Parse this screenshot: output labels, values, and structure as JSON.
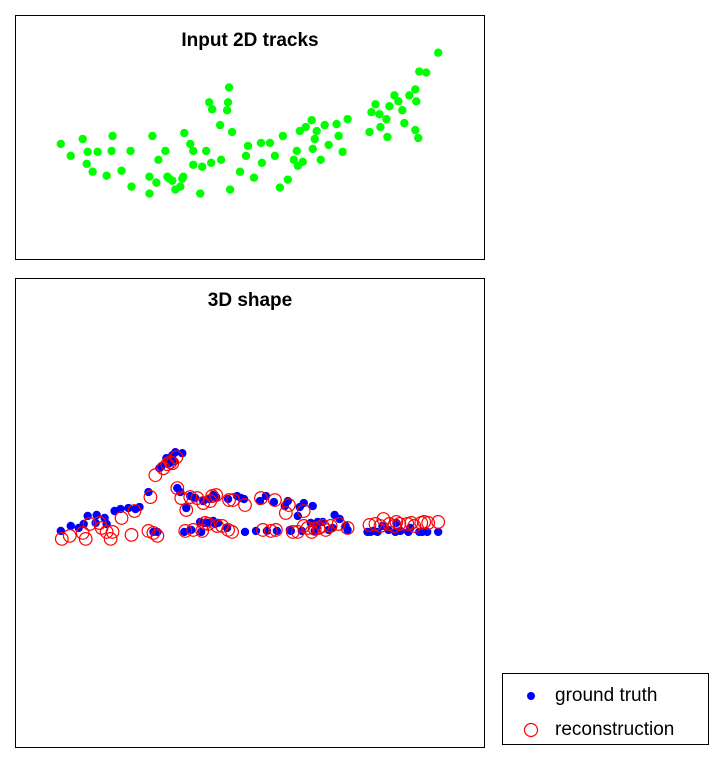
{
  "chart_data": [
    {
      "type": "scatter",
      "title": "Input 2D tracks",
      "xlabel": "",
      "ylabel": "",
      "xlim": [
        0,
        470
      ],
      "ylim": [
        0,
        245
      ],
      "grid": false,
      "series": [
        {
          "color": "#00ff00",
          "marker": "filled-circle",
          "points": [
            [
              45,
              129
            ],
            [
              55,
              141
            ],
            [
              67,
              124
            ],
            [
              72,
              137
            ],
            [
              82,
              137
            ],
            [
              71,
              149
            ],
            [
              77,
              157
            ],
            [
              91,
              161
            ],
            [
              97,
              121
            ],
            [
              96,
              136
            ],
            [
              106,
              156
            ],
            [
              115,
              136
            ],
            [
              116,
              172
            ],
            [
              134,
              162
            ],
            [
              137,
              121
            ],
            [
              134,
              179
            ],
            [
              141,
              168
            ],
            [
              143,
              145
            ],
            [
              150,
              136
            ],
            [
              152,
              162
            ],
            [
              154,
              164
            ],
            [
              157,
              166
            ],
            [
              160,
              175
            ],
            [
              165,
              172
            ],
            [
              167,
              164
            ],
            [
              168,
              162
            ],
            [
              169,
              118
            ],
            [
              175,
              129
            ],
            [
              178,
              150
            ],
            [
              178,
              136
            ],
            [
              185,
              179
            ],
            [
              187,
              152
            ],
            [
              191,
              136
            ],
            [
              196,
              148
            ],
            [
              194,
              87
            ],
            [
              197,
              94
            ],
            [
              205,
              110
            ],
            [
              206,
              145
            ],
            [
              214,
              72
            ],
            [
              213,
              87
            ],
            [
              212,
              95
            ],
            [
              217,
              117
            ],
            [
              215,
              175
            ],
            [
              225,
              157
            ],
            [
              231,
              141
            ],
            [
              233,
              131
            ],
            [
              239,
              163
            ],
            [
              246,
              128
            ],
            [
              247,
              148
            ],
            [
              255,
              128
            ],
            [
              260,
              141
            ],
            [
              265,
              173
            ],
            [
              268,
              121
            ],
            [
              273,
              165
            ],
            [
              279,
              145
            ],
            [
              282,
              136
            ],
            [
              283,
              151
            ],
            [
              285,
              116
            ],
            [
              288,
              147
            ],
            [
              291,
              112
            ],
            [
              297,
              105
            ],
            [
              298,
              134
            ],
            [
              300,
              124
            ],
            [
              302,
              116
            ],
            [
              306,
              145
            ],
            [
              310,
              110
            ],
            [
              314,
              130
            ],
            [
              322,
              109
            ],
            [
              324,
              121
            ],
            [
              328,
              137
            ],
            [
              333,
              104
            ],
            [
              355,
              117
            ],
            [
              357,
              97
            ],
            [
              361,
              89
            ],
            [
              365,
              99
            ],
            [
              366,
              112
            ],
            [
              372,
              104
            ],
            [
              373,
              122
            ],
            [
              375,
              91
            ],
            [
              380,
              80
            ],
            [
              384,
              86
            ],
            [
              388,
              95
            ],
            [
              390,
              108
            ],
            [
              395,
              80
            ],
            [
              401,
              74
            ],
            [
              401,
              115
            ],
            [
              405,
              56
            ],
            [
              402,
              86
            ],
            [
              404,
              123
            ],
            [
              412,
              57
            ],
            [
              424,
              37
            ]
          ]
        }
      ]
    },
    {
      "type": "scatter",
      "title": "3D shape",
      "xlabel": "",
      "ylabel": "",
      "xlim": [
        0,
        470
      ],
      "ylim": [
        0,
        470
      ],
      "grid": false,
      "legend_position": "bottom-right",
      "series": [
        {
          "name": "ground truth",
          "color": "#0000ff",
          "marker": "filled-circle",
          "points": [
            [
              45,
              253
            ],
            [
              55,
              248
            ],
            [
              63,
              250
            ],
            [
              68,
              246
            ],
            [
              72,
              238
            ],
            [
              80,
              245
            ],
            [
              81,
              237
            ],
            [
              89,
              240
            ],
            [
              91,
              246
            ],
            [
              99,
              233
            ],
            [
              105,
              231
            ],
            [
              113,
              230
            ],
            [
              120,
              231
            ],
            [
              124,
              229
            ],
            [
              133,
              214
            ],
            [
              138,
              254
            ],
            [
              142,
              254
            ],
            [
              144,
              190
            ],
            [
              146,
              188
            ],
            [
              151,
              180
            ],
            [
              154,
              185
            ],
            [
              157,
              177
            ],
            [
              159,
              183
            ],
            [
              160,
              174
            ],
            [
              162,
              210
            ],
            [
              165,
              214
            ],
            [
              167,
              175
            ],
            [
              171,
              230
            ],
            [
              169,
              254
            ],
            [
              175,
              218
            ],
            [
              176,
              252
            ],
            [
              180,
              220
            ],
            [
              186,
              254
            ],
            [
              185,
              244
            ],
            [
              188,
              223
            ],
            [
              189,
              245
            ],
            [
              192,
              245
            ],
            [
              194,
              221
            ],
            [
              198,
              217
            ],
            [
              198,
              243
            ],
            [
              200,
              246
            ],
            [
              201,
              219
            ],
            [
              203,
              245
            ],
            [
              212,
              250
            ],
            [
              213,
              221
            ],
            [
              222,
              218
            ],
            [
              226,
              220
            ],
            [
              229,
              221
            ],
            [
              230,
              254
            ],
            [
              241,
              253
            ],
            [
              245,
              223
            ],
            [
              251,
              218
            ],
            [
              252,
              253
            ],
            [
              259,
              224
            ],
            [
              262,
              253
            ],
            [
              270,
              228
            ],
            [
              273,
              223
            ],
            [
              275,
              252
            ],
            [
              276,
              253
            ],
            [
              283,
              238
            ],
            [
              285,
              229
            ],
            [
              287,
              253
            ],
            [
              289,
              225
            ],
            [
              296,
              245
            ],
            [
              298,
              228
            ],
            [
              300,
              253
            ],
            [
              302,
              249
            ],
            [
              303,
              244
            ],
            [
              308,
              244
            ],
            [
              314,
              252
            ],
            [
              318,
              250
            ],
            [
              320,
              237
            ],
            [
              325,
              241
            ],
            [
              331,
              248
            ],
            [
              333,
              252
            ],
            [
              353,
              254
            ],
            [
              356,
              254
            ],
            [
              359,
              253
            ],
            [
              363,
              254
            ],
            [
              368,
              248
            ],
            [
              374,
              252
            ],
            [
              381,
              254
            ],
            [
              382,
              245
            ],
            [
              386,
              253
            ],
            [
              394,
              254
            ],
            [
              396,
              250
            ],
            [
              405,
              254
            ],
            [
              408,
              254
            ],
            [
              413,
              254
            ],
            [
              424,
              254
            ]
          ]
        },
        {
          "name": "reconstruction",
          "color": "#ff0000",
          "marker": "open-circle",
          "points": [
            [
              46,
              261
            ],
            [
              54,
              258
            ],
            [
              67,
              255
            ],
            [
              70,
              261
            ],
            [
              74,
              246
            ],
            [
              84,
              245
            ],
            [
              86,
              250
            ],
            [
              91,
              254
            ],
            [
              95,
              261
            ],
            [
              97,
              254
            ],
            [
              106,
              240
            ],
            [
              116,
              257
            ],
            [
              119,
              233
            ],
            [
              133,
              253
            ],
            [
              135,
              219
            ],
            [
              138,
              255
            ],
            [
              142,
              258
            ],
            [
              140,
              197
            ],
            [
              148,
              190
            ],
            [
              152,
              186
            ],
            [
              155,
              184
            ],
            [
              157,
              185
            ],
            [
              161,
              179
            ],
            [
              162,
              210
            ],
            [
              166,
              220
            ],
            [
              170,
              253
            ],
            [
              171,
              232
            ],
            [
              175,
              219
            ],
            [
              178,
              252
            ],
            [
              182,
              220
            ],
            [
              187,
              253
            ],
            [
              188,
              225
            ],
            [
              190,
              245
            ],
            [
              193,
              246
            ],
            [
              195,
              223
            ],
            [
              197,
              218
            ],
            [
              201,
              217
            ],
            [
              202,
              248
            ],
            [
              207,
              248
            ],
            [
              213,
              252
            ],
            [
              214,
              222
            ],
            [
              217,
              254
            ],
            [
              218,
              222
            ],
            [
              230,
              227
            ],
            [
              246,
              220
            ],
            [
              248,
              252
            ],
            [
              256,
              253
            ],
            [
              260,
              222
            ],
            [
              261,
              252
            ],
            [
              271,
              235
            ],
            [
              274,
              227
            ],
            [
              278,
              254
            ],
            [
              283,
              254
            ],
            [
              289,
              248
            ],
            [
              289,
              233
            ],
            [
              293,
              250
            ],
            [
              297,
              254
            ],
            [
              300,
              251
            ],
            [
              304,
              250
            ],
            [
              308,
              248
            ],
            [
              311,
              252
            ],
            [
              316,
              248
            ],
            [
              324,
              246
            ],
            [
              333,
              250
            ],
            [
              355,
              247
            ],
            [
              361,
              246
            ],
            [
              366,
              248
            ],
            [
              369,
              241
            ],
            [
              375,
              246
            ],
            [
              380,
              248
            ],
            [
              382,
              244
            ],
            [
              385,
              246
            ],
            [
              393,
              246
            ],
            [
              397,
              245
            ],
            [
              400,
              248
            ],
            [
              407,
              245
            ],
            [
              410,
              244
            ],
            [
              414,
              245
            ],
            [
              424,
              244
            ]
          ]
        }
      ]
    }
  ],
  "legend": {
    "entries": [
      {
        "label": "ground truth",
        "color": "#0000ff",
        "marker": "filled-circle"
      },
      {
        "label": "reconstruction",
        "color": "#ff0000",
        "marker": "open-circle"
      }
    ]
  }
}
